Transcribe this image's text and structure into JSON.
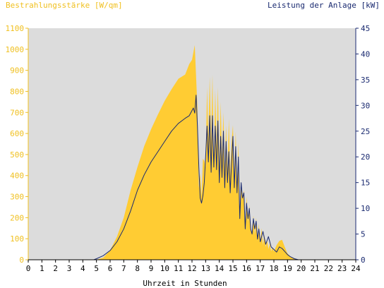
{
  "chart_data": {
    "type": "area",
    "title_left": "Bestrahlungsstärke [W/qm]",
    "title_right": "Leistung der Anlage [kW]",
    "xlabel": "Uhrzeit in Stunden",
    "xlim": [
      0,
      24
    ],
    "x_ticks": [
      "0",
      "1",
      "2",
      "3",
      "4",
      "5",
      "6",
      "7",
      "8",
      "9",
      "10",
      "11",
      "12",
      "13",
      "14",
      "15",
      "16",
      "17",
      "18",
      "19",
      "20",
      "21",
      "22",
      "23",
      "24"
    ],
    "y_left": {
      "label": "Bestrahlungsstärke [W/qm]",
      "lim": [
        0,
        1100
      ],
      "ticks": [
        "0",
        "100",
        "200",
        "300",
        "400",
        "500",
        "600",
        "700",
        "800",
        "900",
        "1000",
        "1100"
      ]
    },
    "y_right": {
      "label": "Leistung der Anlage [kW]",
      "lim": [
        0,
        45
      ],
      "ticks": [
        "0",
        "5",
        "10",
        "15",
        "20",
        "25",
        "30",
        "35",
        "40",
        "45"
      ]
    },
    "colors": {
      "irradiance_fill": "#ffcc33",
      "power_line": "#1a2a70",
      "plot_bg": "#dcdcdc",
      "left_axis_text": "#f0c020",
      "right_axis_text": "#1a2a70"
    },
    "series": [
      {
        "name": "Bestrahlungsstärke [W/qm]",
        "axis": "left",
        "style": "area",
        "x": [
          0,
          5.0,
          5.5,
          6.0,
          6.5,
          7.0,
          7.5,
          8.0,
          8.5,
          9.0,
          9.5,
          10.0,
          10.5,
          11.0,
          11.5,
          11.8,
          12.0,
          12.2,
          12.4,
          12.5,
          12.6,
          12.7,
          12.8,
          12.9,
          13.0,
          13.1,
          13.2,
          13.3,
          13.4,
          13.5,
          13.6,
          13.7,
          13.8,
          13.9,
          14.0,
          14.1,
          14.2,
          14.3,
          14.4,
          14.5,
          14.6,
          14.7,
          14.8,
          14.9,
          15.0,
          15.1,
          15.2,
          15.3,
          15.4,
          15.5,
          15.6,
          15.7,
          15.8,
          15.9,
          16.0,
          16.1,
          16.2,
          16.3,
          16.4,
          16.5,
          16.6,
          16.7,
          16.8,
          16.9,
          17.0,
          17.1,
          17.2,
          17.3,
          17.4,
          17.5,
          17.6,
          17.7,
          17.8,
          17.9,
          18.0,
          18.2,
          18.4,
          18.6,
          18.8,
          19.0,
          19.2,
          19.5,
          19.8,
          20.0,
          24
        ],
        "values": [
          0,
          0,
          10,
          45,
          110,
          200,
          330,
          440,
          540,
          620,
          690,
          755,
          810,
          860,
          880,
          930,
          950,
          1020,
          720,
          340,
          410,
          300,
          480,
          470,
          440,
          820,
          580,
          870,
          560,
          880,
          430,
          810,
          540,
          820,
          440,
          750,
          480,
          700,
          430,
          640,
          420,
          670,
          400,
          560,
          640,
          380,
          610,
          340,
          560,
          200,
          350,
          300,
          330,
          160,
          300,
          180,
          260,
          140,
          130,
          210,
          120,
          200,
          90,
          170,
          80,
          150,
          70,
          120,
          60,
          95,
          50,
          80,
          40,
          60,
          40,
          70,
          90,
          95,
          60,
          30,
          15,
          5,
          0,
          0,
          0
        ]
      },
      {
        "name": "Leistung der Anlage [kW]",
        "axis": "right",
        "style": "line",
        "x": [
          0,
          4.8,
          5.0,
          5.5,
          6.0,
          6.5,
          7.0,
          7.5,
          8.0,
          8.5,
          9.0,
          9.5,
          10.0,
          10.5,
          11.0,
          11.5,
          11.8,
          12.0,
          12.1,
          12.2,
          12.3,
          12.4,
          12.5,
          12.6,
          12.7,
          12.8,
          12.9,
          13.0,
          13.1,
          13.2,
          13.3,
          13.4,
          13.5,
          13.6,
          13.7,
          13.8,
          13.9,
          14.0,
          14.1,
          14.2,
          14.3,
          14.4,
          14.5,
          14.6,
          14.7,
          14.8,
          14.9,
          15.0,
          15.1,
          15.2,
          15.3,
          15.4,
          15.5,
          15.6,
          15.7,
          15.8,
          15.9,
          16.0,
          16.1,
          16.2,
          16.3,
          16.4,
          16.5,
          16.6,
          16.7,
          16.8,
          16.9,
          17.0,
          17.2,
          17.4,
          17.6,
          17.8,
          18.0,
          18.2,
          18.4,
          18.6,
          18.8,
          19.0,
          19.2,
          19.5,
          19.8,
          20.0,
          24
        ],
        "values": [
          0,
          0,
          0.2,
          0.8,
          1.8,
          3.5,
          6.0,
          9.5,
          13.5,
          16.5,
          19.0,
          21.0,
          23.0,
          25.0,
          26.5,
          27.5,
          28.0,
          29.0,
          29.5,
          28.5,
          32.0,
          26.0,
          18.0,
          12.0,
          11.0,
          12.5,
          15.0,
          20.0,
          26.0,
          19.0,
          28.0,
          17.0,
          28.0,
          18.0,
          26.0,
          17.5,
          27.0,
          15.0,
          24.0,
          16.0,
          25.0,
          14.0,
          23.0,
          15.0,
          21.0,
          13.0,
          19.0,
          24.0,
          14.0,
          22.0,
          13.0,
          20.0,
          8.0,
          15.0,
          12.0,
          13.0,
          6.0,
          11.0,
          8.0,
          10.0,
          6.0,
          5.0,
          8.0,
          6.0,
          7.5,
          4.0,
          6.0,
          3.5,
          5.5,
          3.0,
          4.5,
          2.5,
          2.0,
          1.5,
          2.5,
          2.2,
          1.6,
          1.0,
          0.6,
          0.2,
          0,
          0,
          0
        ]
      }
    ]
  }
}
